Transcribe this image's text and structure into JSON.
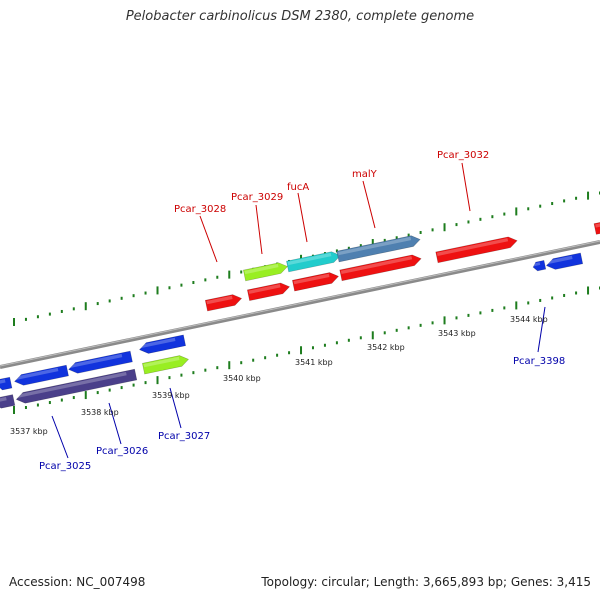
{
  "title": "Pelobacter carbinolicus DSM 2380, complete genome",
  "footer": {
    "accession": "Accession: NC_007498",
    "topology": "Topology: circular; Length: 3,665,893 bp; Genes: 3,415"
  },
  "colors": {
    "backbone": "#888888",
    "tick": "#1e7d1e",
    "label_forward": "#cc0000",
    "label_reverse": "#0000aa",
    "red": "#ee1111",
    "blue": "#1133dd",
    "navy": "#4a3f8a",
    "lime": "#99ee22",
    "cyan": "#22cccc",
    "steel": "#4f80b0"
  },
  "kbp_labels": [
    "3537 kbp",
    "3538 kbp",
    "3539 kbp",
    "3540 kbp",
    "3541 kbp",
    "3542 kbp",
    "3543 kbp",
    "3544 kbp"
  ],
  "forward_labels": [
    "Pcar_3028",
    "Pcar_3029",
    "fucA",
    "malY",
    "Pcar_3032"
  ],
  "reverse_labels": [
    "Pcar_3025",
    "Pcar_3026",
    "Pcar_3027",
    "Pcar_3398"
  ]
}
